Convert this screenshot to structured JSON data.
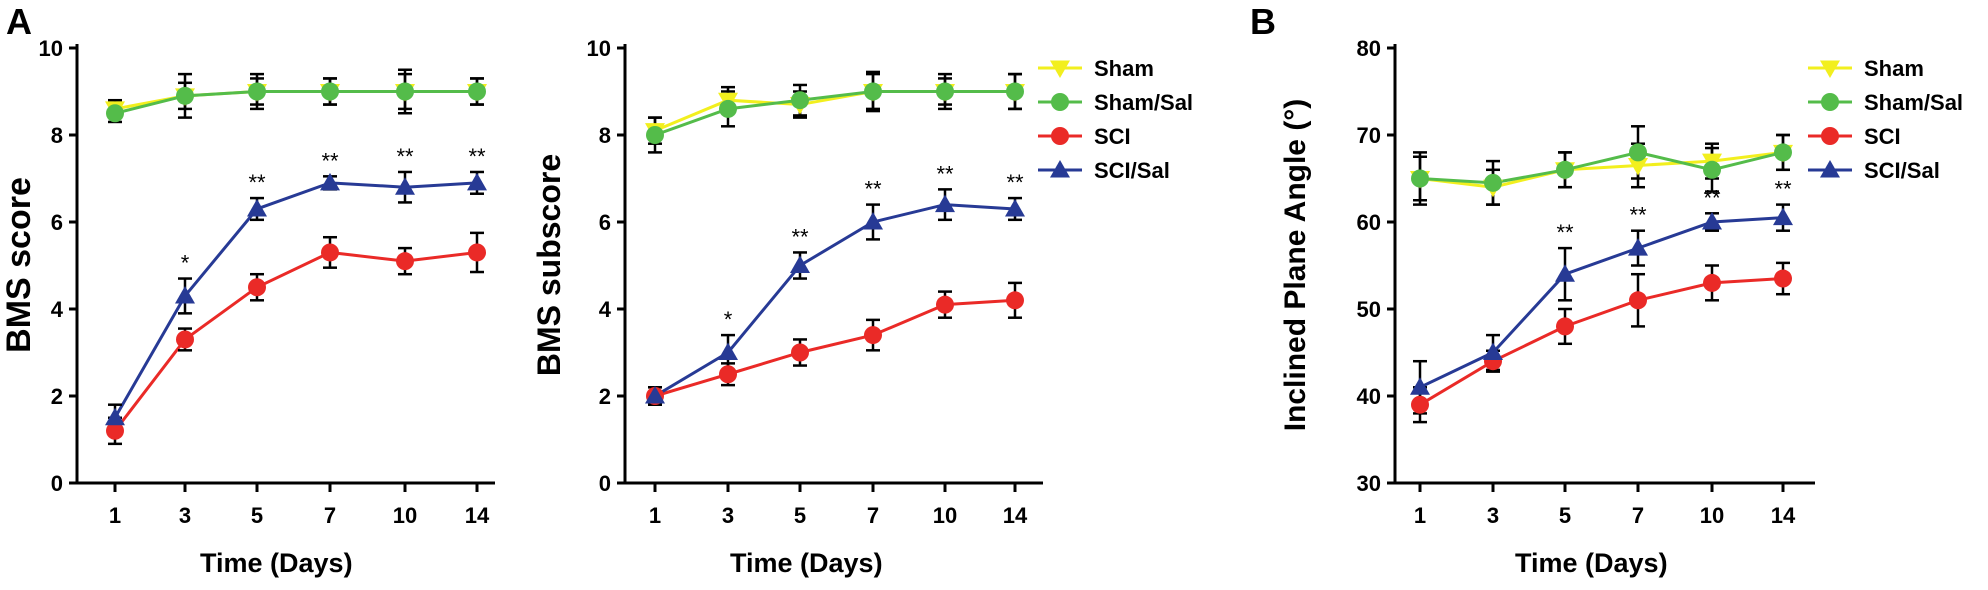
{
  "panel_letters": {
    "a": "A",
    "b": "B"
  },
  "colors": {
    "Sham": "#f2ef1e",
    "Sham/Sal": "#54bc4a",
    "SCI": "#ea2a27",
    "SCI/Sal": "#273a95",
    "error_bar": "#000000"
  },
  "chart_data": [
    {
      "type": "line",
      "panel": "A",
      "xlabel": "Time (Days)",
      "ylabel": "BMS score",
      "categories": [
        "1",
        "3",
        "5",
        "7",
        "10",
        "14"
      ],
      "ylim": [
        0,
        10
      ],
      "yticks": [
        0,
        2,
        4,
        6,
        8,
        10
      ],
      "series": [
        {
          "name": "Sham",
          "color": "#f2ef1e",
          "marker": "triangle-down",
          "values": [
            8.6,
            8.9,
            9.0,
            9.0,
            9.0,
            9.0
          ],
          "errors": [
            0.2,
            0.5,
            0.4,
            0.3,
            0.5,
            0.3
          ]
        },
        {
          "name": "Sham/Sal",
          "color": "#54bc4a",
          "marker": "circle",
          "values": [
            8.5,
            8.9,
            9.0,
            9.0,
            9.0,
            9.0
          ],
          "errors": [
            0.2,
            0.3,
            0.3,
            0.3,
            0.4,
            0.3
          ]
        },
        {
          "name": "SCI",
          "color": "#ea2a27",
          "marker": "circle",
          "values": [
            1.2,
            3.3,
            4.5,
            5.3,
            5.1,
            5.3
          ],
          "errors": [
            0.3,
            0.25,
            0.3,
            0.35,
            0.3,
            0.45
          ]
        },
        {
          "name": "SCI/Sal",
          "color": "#273a95",
          "marker": "triangle-up",
          "values": [
            1.5,
            4.3,
            6.3,
            6.9,
            6.8,
            6.9
          ],
          "errors": [
            0.3,
            0.4,
            0.25,
            0.15,
            0.35,
            0.25
          ]
        }
      ],
      "annotations": [
        "",
        "*",
        "**",
        "**",
        "**",
        "**"
      ]
    },
    {
      "type": "line",
      "panel": "A",
      "xlabel": "Time (Days)",
      "ylabel": "BMS subscore",
      "categories": [
        "1",
        "3",
        "5",
        "7",
        "10",
        "14"
      ],
      "ylim": [
        0,
        10
      ],
      "yticks": [
        0,
        2,
        4,
        6,
        8,
        10
      ],
      "series": [
        {
          "name": "Sham",
          "color": "#f2ef1e",
          "marker": "triangle-down",
          "values": [
            8.1,
            8.8,
            8.7,
            9.0,
            9.0,
            9.0
          ],
          "errors": [
            0.3,
            0.3,
            0.3,
            0.4,
            0.3,
            0.4
          ]
        },
        {
          "name": "Sham/Sal",
          "color": "#54bc4a",
          "marker": "circle",
          "values": [
            8.0,
            8.6,
            8.8,
            9.0,
            9.0,
            9.0
          ],
          "errors": [
            0.4,
            0.4,
            0.35,
            0.45,
            0.4,
            0.4
          ]
        },
        {
          "name": "SCI",
          "color": "#ea2a27",
          "marker": "circle",
          "values": [
            2.0,
            2.5,
            3.0,
            3.4,
            4.1,
            4.2
          ],
          "errors": [
            0.2,
            0.25,
            0.3,
            0.35,
            0.3,
            0.4
          ]
        },
        {
          "name": "SCI/Sal",
          "color": "#273a95",
          "marker": "triangle-up",
          "values": [
            2.0,
            3.0,
            5.0,
            6.0,
            6.4,
            6.3
          ],
          "errors": [
            0.2,
            0.4,
            0.3,
            0.4,
            0.35,
            0.25
          ]
        }
      ],
      "annotations": [
        "",
        "*",
        "**",
        "**",
        "**",
        "**"
      ]
    },
    {
      "type": "line",
      "panel": "B",
      "xlabel": "Time (Days)",
      "ylabel": "Inclined Plane Angle (°)",
      "categories": [
        "1",
        "3",
        "5",
        "7",
        "10",
        "14"
      ],
      "ylim": [
        30,
        80
      ],
      "yticks": [
        30,
        40,
        50,
        60,
        70,
        80
      ],
      "series": [
        {
          "name": "Sham",
          "color": "#f2ef1e",
          "marker": "triangle-down",
          "values": [
            65,
            64,
            66,
            66.5,
            67,
            68
          ],
          "errors": [
            3,
            2,
            2,
            2.5,
            2,
            2
          ]
        },
        {
          "name": "Sham/Sal",
          "color": "#54bc4a",
          "marker": "circle",
          "values": [
            65,
            64.5,
            66,
            68,
            66,
            68
          ],
          "errors": [
            2.5,
            2.5,
            2,
            3,
            2.5,
            2
          ]
        },
        {
          "name": "SCI",
          "color": "#ea2a27",
          "marker": "circle",
          "values": [
            39,
            44,
            48,
            51,
            53,
            53.5
          ],
          "errors": [
            2,
            1.2,
            2,
            3,
            2,
            1.8
          ]
        },
        {
          "name": "SCI/Sal",
          "color": "#273a95",
          "marker": "triangle-up",
          "values": [
            41,
            45,
            54,
            57,
            60,
            60.5
          ],
          "errors": [
            3,
            2,
            3,
            2,
            1,
            1.5
          ]
        }
      ],
      "annotations": [
        "",
        "",
        "**",
        "**",
        "**",
        "**"
      ]
    }
  ]
}
